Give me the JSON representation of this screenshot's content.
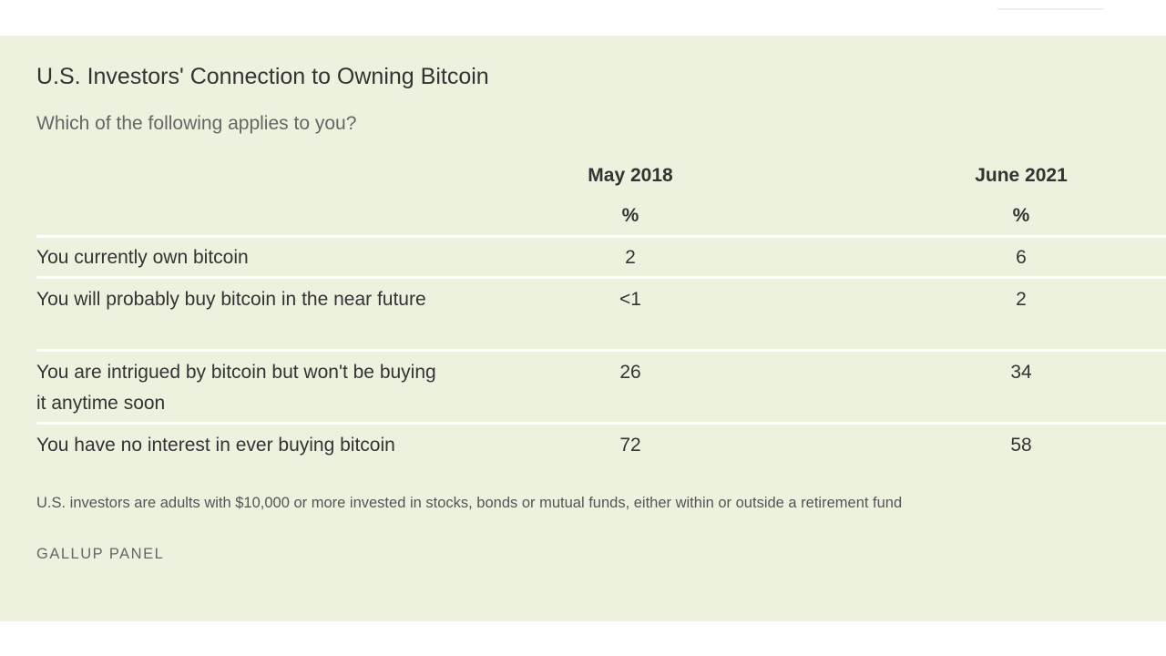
{
  "chart_data": {
    "type": "table",
    "title": "U.S. Investors' Connection to Owning Bitcoin",
    "subtitle": "Which of the following applies to you?",
    "columns": [
      {
        "name": "May 2018",
        "unit": "%"
      },
      {
        "name": "June 2021",
        "unit": "%"
      }
    ],
    "rows": [
      {
        "label": "You currently own bitcoin",
        "values": [
          "2",
          "6"
        ]
      },
      {
        "label": "You will probably buy bitcoin in the near future",
        "values": [
          "<1",
          "2"
        ]
      },
      {
        "label": "You are intrigued by bitcoin but won't be buying it anytime soon",
        "values": [
          "26",
          "34"
        ]
      },
      {
        "label": "You have no interest in ever buying bitcoin",
        "values": [
          "72",
          "58"
        ]
      }
    ],
    "note": "U.S. investors are adults with $10,000 or more invested in stocks, bonds or mutual funds, either within or outside a retirement fund",
    "source": "GALLUP PANEL"
  },
  "colors": {
    "panel_background": "#edf2df",
    "rule": "#ffffff",
    "text": "#333333",
    "muted_text": "#666666"
  }
}
